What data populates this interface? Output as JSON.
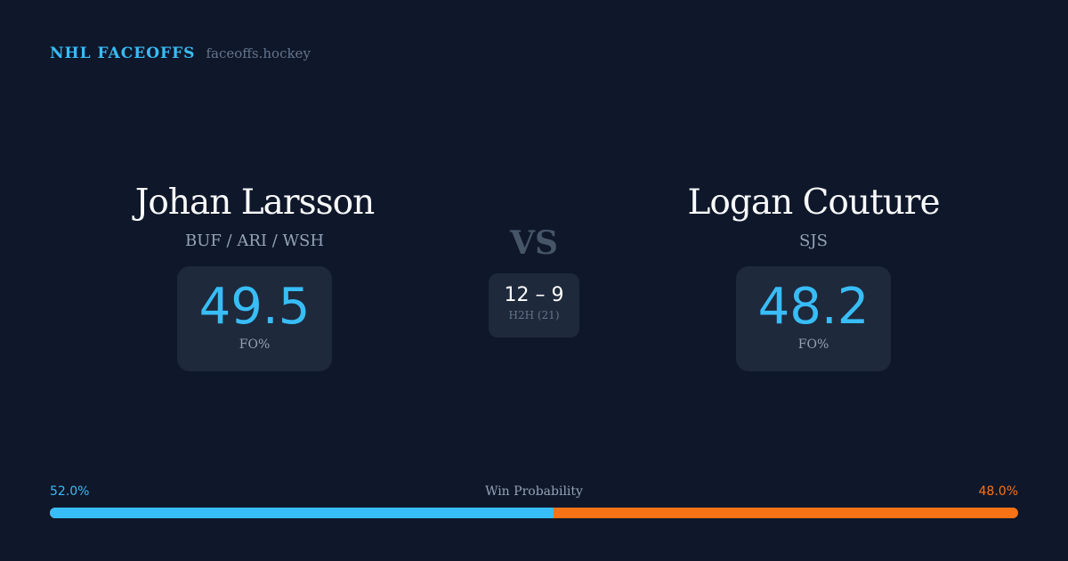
{
  "brand": {
    "title": "NHL FACEOFFS",
    "url": "faceoffs.hockey"
  },
  "left": {
    "name": "Johan Larsson",
    "teams": "BUF / ARI / WSH",
    "fo_pct": "49.5",
    "fo_label": "FO%"
  },
  "right": {
    "name": "Logan Couture",
    "teams": "SJS",
    "fo_pct": "48.2",
    "fo_label": "FO%"
  },
  "vs": "VS",
  "h2h": {
    "score": "12 – 9",
    "label": "H2H (21)"
  },
  "win_probability": {
    "label": "Win Probability",
    "left": "52.0%",
    "right": "48.0%",
    "left_fraction": 0.52,
    "left_color": "#38bdf8",
    "right_color": "#f97316"
  }
}
